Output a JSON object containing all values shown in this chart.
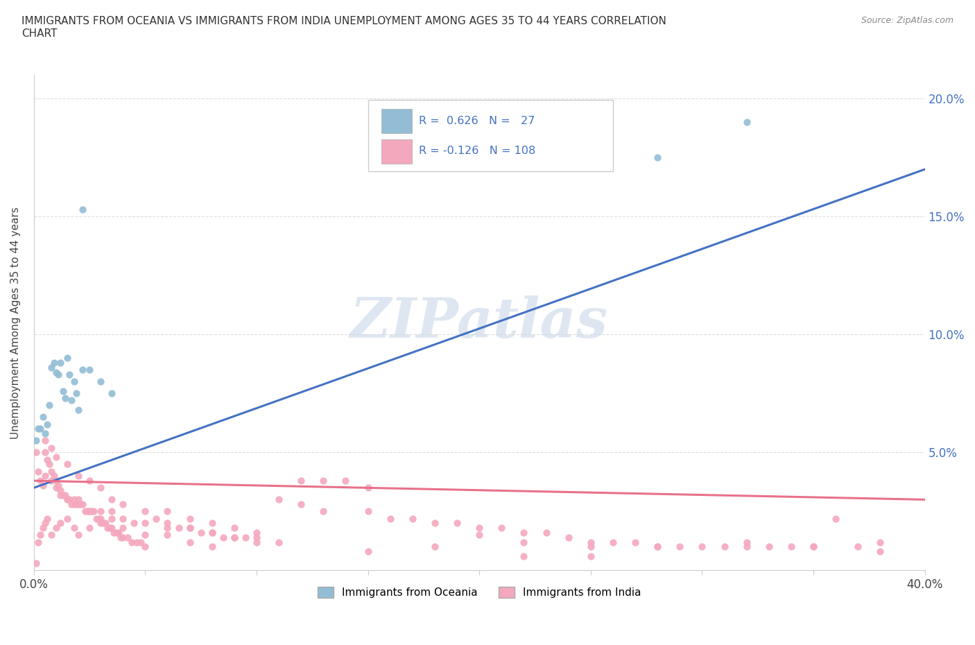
{
  "title": "IMMIGRANTS FROM OCEANIA VS IMMIGRANTS FROM INDIA UNEMPLOYMENT AMONG AGES 35 TO 44 YEARS CORRELATION\nCHART",
  "source": "Source: ZipAtlas.com",
  "ylabel": "Unemployment Among Ages 35 to 44 years",
  "xlim": [
    0.0,
    0.4
  ],
  "ylim": [
    0.0,
    0.21
  ],
  "oceania_color": "#92BDD4",
  "india_color": "#F4A8BE",
  "oceania_line_color": "#4472C4",
  "india_line_color": "#E8718A",
  "R_oceania": 0.626,
  "N_oceania": 27,
  "R_india": -0.126,
  "N_india": 108,
  "watermark": "ZIPatlas",
  "watermark_color": "#C8D8E8",
  "blue_line_x0": 0.0,
  "blue_line_y0": 0.035,
  "blue_line_x1": 0.4,
  "blue_line_y1": 0.17,
  "pink_line_x0": 0.0,
  "pink_line_y0": 0.038,
  "pink_line_x1": 0.4,
  "pink_line_y1": 0.03,
  "oceania_x": [
    0.001,
    0.002,
    0.003,
    0.004,
    0.005,
    0.006,
    0.007,
    0.008,
    0.009,
    0.01,
    0.011,
    0.012,
    0.013,
    0.014,
    0.015,
    0.016,
    0.017,
    0.018,
    0.019,
    0.02,
    0.022,
    0.025,
    0.03,
    0.035,
    0.022,
    0.28,
    0.32
  ],
  "oceania_y": [
    0.055,
    0.06,
    0.06,
    0.065,
    0.058,
    0.062,
    0.07,
    0.086,
    0.088,
    0.084,
    0.083,
    0.088,
    0.076,
    0.073,
    0.09,
    0.083,
    0.072,
    0.08,
    0.075,
    0.068,
    0.085,
    0.085,
    0.08,
    0.075,
    0.153,
    0.175,
    0.19
  ],
  "india_x": [
    0.001,
    0.002,
    0.003,
    0.004,
    0.005,
    0.006,
    0.007,
    0.008,
    0.009,
    0.01,
    0.011,
    0.012,
    0.013,
    0.014,
    0.015,
    0.016,
    0.017,
    0.018,
    0.019,
    0.02,
    0.021,
    0.022,
    0.023,
    0.024,
    0.025,
    0.026,
    0.027,
    0.028,
    0.029,
    0.03,
    0.031,
    0.032,
    0.033,
    0.034,
    0.035,
    0.036,
    0.037,
    0.038,
    0.039,
    0.04,
    0.042,
    0.044,
    0.046,
    0.048,
    0.05,
    0.055,
    0.06,
    0.065,
    0.07,
    0.075,
    0.08,
    0.085,
    0.09,
    0.095,
    0.1,
    0.11,
    0.12,
    0.13,
    0.14,
    0.15,
    0.005,
    0.008,
    0.01,
    0.012,
    0.015,
    0.018,
    0.02,
    0.025,
    0.03,
    0.035,
    0.04,
    0.045,
    0.05,
    0.06,
    0.07,
    0.08,
    0.09,
    0.1,
    0.11,
    0.12,
    0.13,
    0.15,
    0.16,
    0.17,
    0.18,
    0.19,
    0.2,
    0.21,
    0.22,
    0.23,
    0.24,
    0.25,
    0.26,
    0.27,
    0.28,
    0.29,
    0.3,
    0.31,
    0.32,
    0.33,
    0.34,
    0.35,
    0.36,
    0.37,
    0.38,
    0.2,
    0.22,
    0.25
  ],
  "india_y": [
    0.05,
    0.042,
    0.038,
    0.036,
    0.05,
    0.047,
    0.045,
    0.042,
    0.04,
    0.038,
    0.036,
    0.034,
    0.032,
    0.032,
    0.03,
    0.03,
    0.028,
    0.03,
    0.028,
    0.03,
    0.028,
    0.028,
    0.025,
    0.025,
    0.025,
    0.025,
    0.025,
    0.022,
    0.022,
    0.022,
    0.02,
    0.02,
    0.018,
    0.018,
    0.018,
    0.016,
    0.016,
    0.016,
    0.014,
    0.014,
    0.014,
    0.012,
    0.012,
    0.012,
    0.01,
    0.022,
    0.02,
    0.018,
    0.018,
    0.016,
    0.016,
    0.014,
    0.014,
    0.014,
    0.012,
    0.012,
    0.038,
    0.038,
    0.038,
    0.035,
    0.04,
    0.038,
    0.035,
    0.032,
    0.03,
    0.028,
    0.028,
    0.025,
    0.025,
    0.025,
    0.022,
    0.02,
    0.02,
    0.018,
    0.018,
    0.016,
    0.014,
    0.014,
    0.03,
    0.028,
    0.025,
    0.025,
    0.022,
    0.022,
    0.02,
    0.02,
    0.018,
    0.018,
    0.016,
    0.016,
    0.014,
    0.012,
    0.012,
    0.012,
    0.01,
    0.01,
    0.01,
    0.01,
    0.01,
    0.01,
    0.01,
    0.01,
    0.022,
    0.01,
    0.012,
    0.015,
    0.012,
    0.01
  ],
  "india_extra_x": [
    0.001,
    0.002,
    0.003,
    0.004,
    0.005,
    0.006,
    0.008,
    0.01,
    0.012,
    0.015,
    0.018,
    0.02,
    0.025,
    0.03,
    0.035,
    0.04,
    0.05,
    0.06,
    0.07,
    0.08,
    0.15,
    0.18,
    0.22,
    0.25,
    0.28,
    0.32,
    0.35,
    0.38,
    0.005,
    0.008,
    0.01,
    0.015,
    0.02,
    0.025,
    0.03,
    0.035,
    0.04,
    0.05,
    0.06,
    0.07,
    0.08,
    0.09,
    0.1
  ],
  "india_extra_y": [
    0.003,
    0.012,
    0.015,
    0.018,
    0.02,
    0.022,
    0.015,
    0.018,
    0.02,
    0.022,
    0.018,
    0.015,
    0.018,
    0.02,
    0.022,
    0.018,
    0.015,
    0.015,
    0.012,
    0.01,
    0.008,
    0.01,
    0.006,
    0.006,
    0.01,
    0.012,
    0.01,
    0.008,
    0.055,
    0.052,
    0.048,
    0.045,
    0.04,
    0.038,
    0.035,
    0.03,
    0.028,
    0.025,
    0.025,
    0.022,
    0.02,
    0.018,
    0.016
  ]
}
